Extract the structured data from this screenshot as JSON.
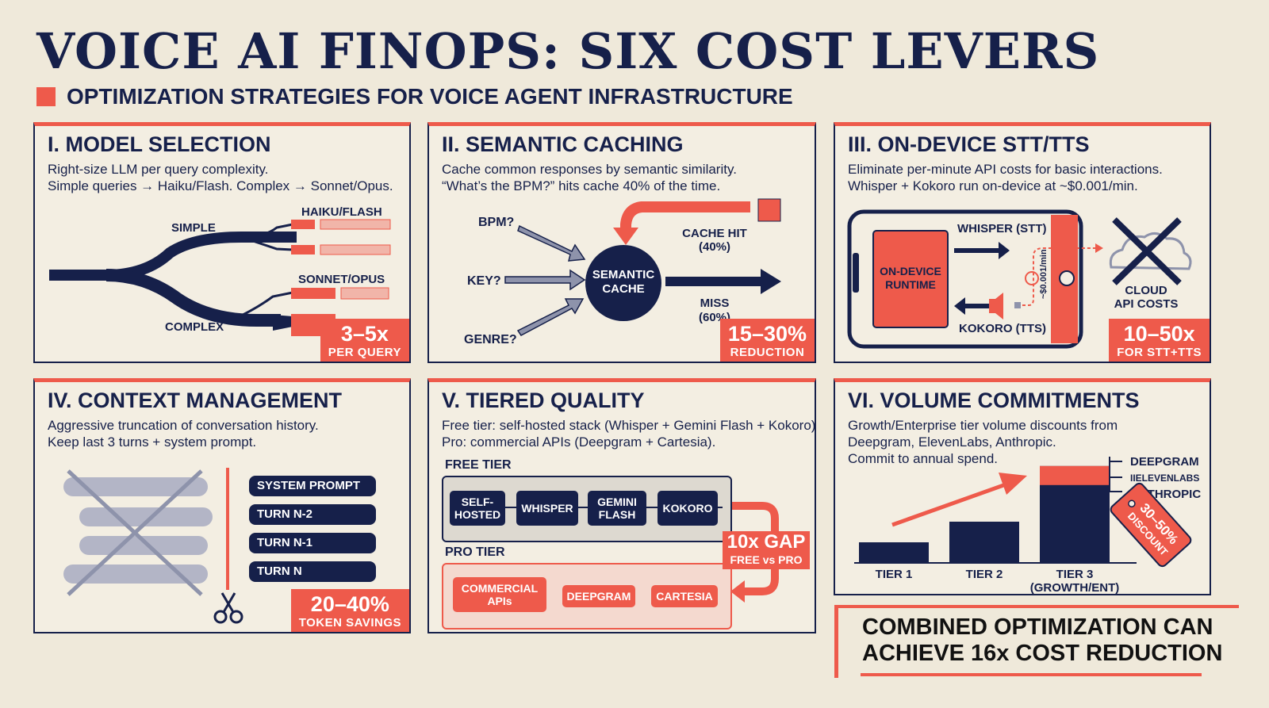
{
  "header": {
    "title": "VOICE AI FINOPS: SIX COST LEVERS",
    "subtitle": "OPTIMIZATION STRATEGIES FOR VOICE AGENT INFRASTRUCTURE"
  },
  "cards": [
    {
      "title": "I. MODEL SELECTION",
      "desc": [
        "Right-size LLM per query complexity.",
        "Simple queries → Haiku/Flash. Complex → Sonnet/Opus."
      ],
      "labels": {
        "simple": "SIMPLE",
        "complex": "COMPLEX",
        "fast": "HAIKU/FLASH",
        "big": "SONNET/OPUS"
      },
      "badge": {
        "value": "3–5x",
        "label": "PER QUERY"
      }
    },
    {
      "title": "II. SEMANTIC CACHING",
      "desc": [
        "Cache common responses by semantic similarity.",
        "“What’s the BPM?” hits cache 40% of the time."
      ],
      "labels": {
        "q1": "BPM?",
        "q2": "KEY?",
        "q3": "GENRE?",
        "cache": [
          "SEMANTIC",
          "CACHE"
        ],
        "hit": [
          "CACHE HIT",
          "(40%)"
        ],
        "miss": [
          "MISS",
          "(60%)"
        ]
      },
      "badge": {
        "value": "15–30%",
        "label": "REDUCTION"
      }
    },
    {
      "title": "III. ON-DEVICE STT/TTS",
      "desc": [
        "Eliminate per-minute API costs for basic interactions.",
        "Whisper + Kokoro run on-device at ~$0.001/min."
      ],
      "labels": {
        "runtime": [
          "ON-DEVICE",
          "RUNTIME"
        ],
        "stt": "WHISPER (STT)",
        "tts": "KOKORO (TTS)",
        "rate": "~$0.001/min",
        "cloud": [
          "CLOUD",
          "API COSTS"
        ]
      },
      "badge": {
        "value": "10–50x",
        "label": "FOR STT+TTS"
      }
    },
    {
      "title": "IV. CONTEXT MANAGEMENT",
      "desc": [
        "Aggressive truncation of conversation history.",
        "Keep last 3 turns + system prompt."
      ],
      "labels": {
        "kept": [
          "SYSTEM PROMPT",
          "TURN N-2",
          "TURN N-1",
          "TURN N"
        ]
      },
      "badge": {
        "value": "20–40%",
        "label": "TOKEN SAVINGS"
      }
    },
    {
      "title": "V. TIERED QUALITY",
      "desc": [
        "Free tier: self-hosted stack (Whisper + Gemini Flash + Kokoro).",
        "Pro: commercial APIs (Deepgram + Cartesia)."
      ],
      "labels": {
        "free_tier": "FREE TIER",
        "free_items": [
          [
            "SELF-",
            "HOSTED"
          ],
          [
            "WHISPER"
          ],
          [
            "GEMINI",
            "FLASH"
          ],
          [
            "KOKORO"
          ]
        ],
        "pro_tier": "PRO TIER",
        "pro_items": [
          [
            "COMMERCIAL",
            "APIs"
          ],
          [
            "DEEPGRAM"
          ],
          [
            "CARTESIA"
          ]
        ],
        "gap": "10x GAP",
        "gap_sub": "FREE vs PRO"
      }
    },
    {
      "title": "VI. VOLUME COMMITMENTS",
      "desc": [
        "Growth/Enterprise tier volume discounts from",
        "Deepgram, ElevenLabs, Anthropic.",
        "Commit to annual spend."
      ],
      "labels": {
        "tiers": [
          [
            "TIER 1"
          ],
          [
            "TIER 2"
          ],
          [
            "TIER 3",
            "(GROWTH/ENT)"
          ]
        ],
        "vendors": [
          "DEEPGRAM",
          "IIELEVENLABS",
          "ANTHROPIC"
        ],
        "tag": [
          "30–50%",
          "DISCOUNT"
        ]
      },
      "chart_data": {
        "type": "bar",
        "categories": [
          "TIER 1",
          "TIER 2",
          "TIER 3 (GROWTH/ENT)"
        ],
        "values": [
          1,
          2,
          4.7
        ]
      }
    }
  ],
  "footer": {
    "lines": [
      "COMBINED OPTIMIZATION CAN",
      "ACHIEVE 16x COST REDUCTION"
    ]
  },
  "colors": {
    "navy": "#16204a",
    "coral": "#ee5a4b",
    "paper": "#efe9da"
  }
}
